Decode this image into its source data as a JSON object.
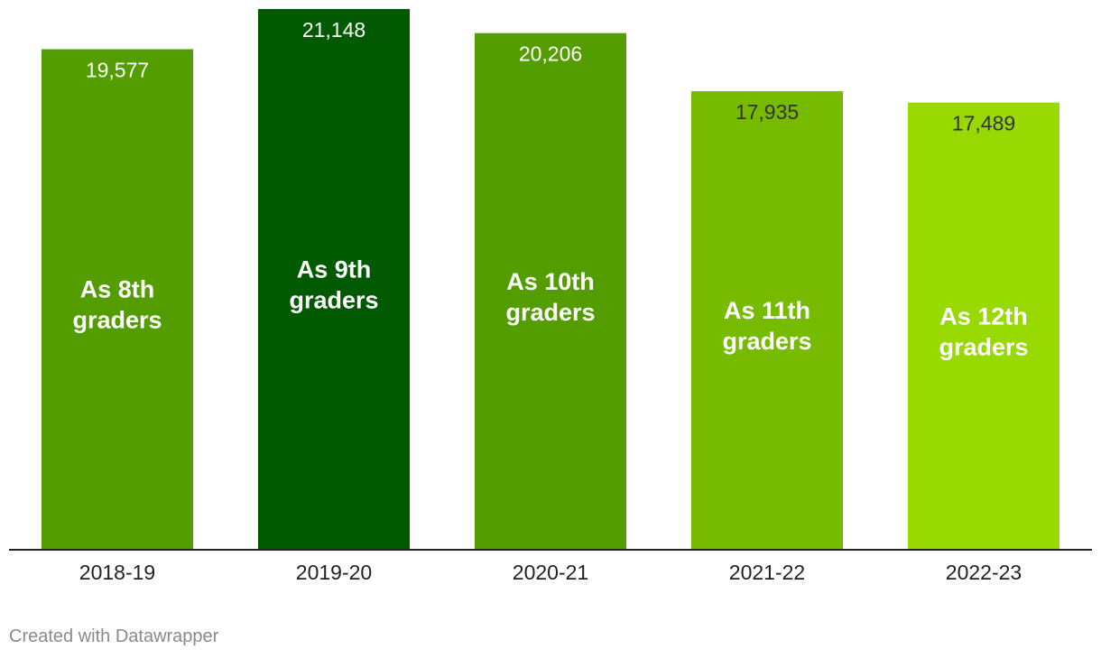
{
  "chart_data": {
    "type": "bar",
    "categories": [
      "2018-19",
      "2019-20",
      "2020-21",
      "2021-22",
      "2022-23"
    ],
    "values": [
      19577,
      21148,
      20206,
      17935,
      17489
    ],
    "value_labels": [
      "19,577",
      "21,148",
      "20,206",
      "17,935",
      "17,489"
    ],
    "bar_labels": [
      [
        "As 8th",
        "graders"
      ],
      [
        "As 9th",
        "graders"
      ],
      [
        "As 10th",
        "graders"
      ],
      [
        "As 11th",
        "graders"
      ],
      [
        "As 12th",
        "graders"
      ]
    ],
    "colors": [
      "#549d01",
      "#015901",
      "#549d01",
      "#77bb01",
      "#97d900"
    ],
    "value_label_colors": [
      "#ffffff",
      "#ffffff",
      "#ffffff",
      "#333333",
      "#333333"
    ],
    "ylim": [
      0,
      21148
    ],
    "grid": false,
    "legend": "none"
  },
  "footer": {
    "credit": "Created with Datawrapper"
  }
}
